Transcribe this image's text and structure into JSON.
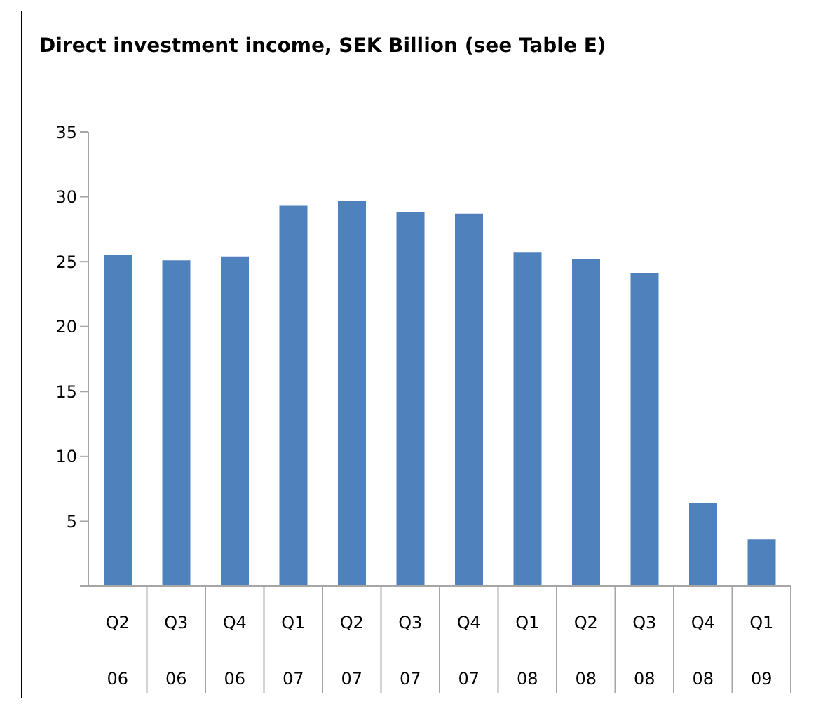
{
  "chart_data": {
    "type": "bar",
    "title": "Direct investment income, SEK Billion (see Table E)",
    "categories": [
      "Q2 06",
      "Q3 06",
      "Q4 06",
      "Q1 07",
      "Q2 07",
      "Q3 07",
      "Q4 07",
      "Q1 08",
      "Q2 08",
      "Q3 08",
      "Q4 08",
      "Q1 09"
    ],
    "values": [
      25.5,
      25.1,
      25.4,
      29.3,
      29.7,
      28.8,
      28.7,
      25.7,
      25.2,
      24.1,
      6.4,
      3.6
    ],
    "color": "#4f81bd",
    "ylim": [
      0,
      35
    ],
    "yticks": [
      {
        "value": 0,
        "label": null
      },
      5,
      10,
      15,
      20,
      25,
      30,
      35
    ],
    "grid": false
  }
}
